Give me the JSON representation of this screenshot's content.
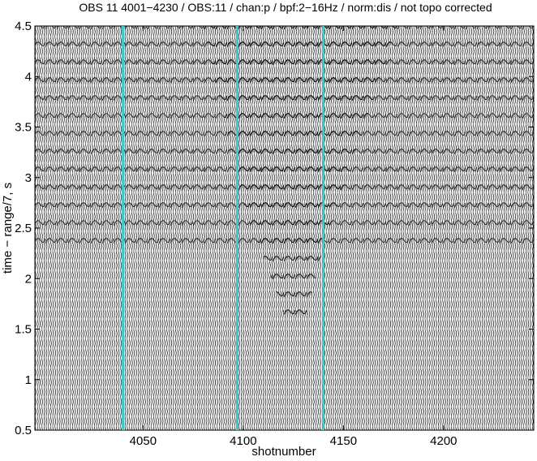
{
  "chart_data": {
    "type": "seismic",
    "title": "OBS 11 4001−4230 / OBS:11 / chan:p / bpf:2−16Hz / norm:dis / not topo corrected",
    "xlabel": "shotnumber",
    "ylabel": "time − range/7, s",
    "xlim": [
      3996,
      4245
    ],
    "xticks": [
      4050,
      4100,
      4150,
      4200
    ],
    "ylim": [
      0.5,
      4.5
    ],
    "yticks": [
      0.5,
      1,
      1.5,
      2,
      2.5,
      3,
      3.5,
      4,
      4.5
    ],
    "highlighted_traces": [
      4040,
      4097,
      4140
    ],
    "highlight_color": "#33cccc"
  }
}
